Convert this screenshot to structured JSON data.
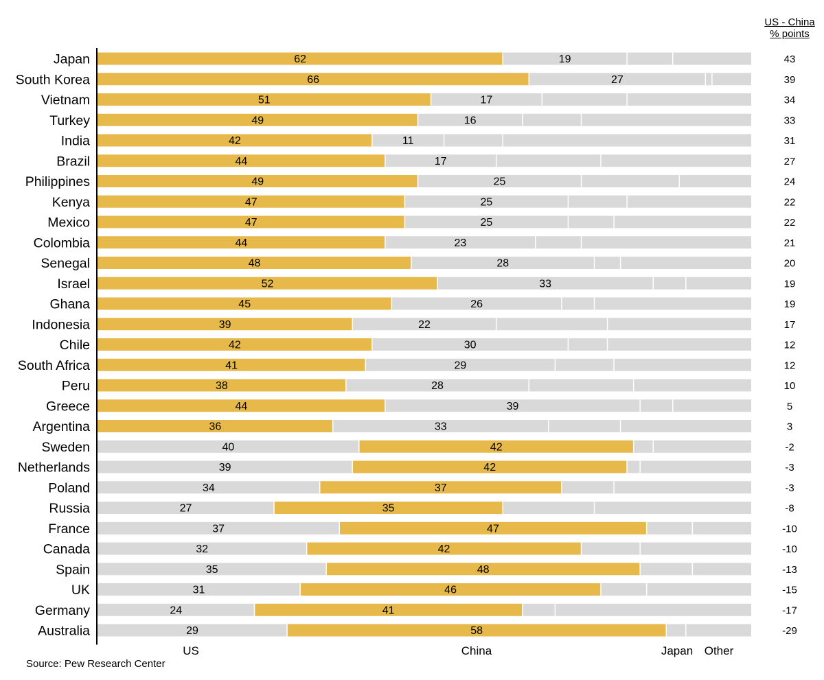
{
  "chart_data": {
    "type": "bar",
    "stacked": true,
    "orientation": "horizontal",
    "colors": {
      "highlight": "#E6B94A",
      "other": "#D9D9D9",
      "separator": "#FFFFFF",
      "axis": "#000000"
    },
    "segment_order": [
      "US",
      "China",
      "Japan",
      "Other"
    ],
    "bottom_labels": [
      "US",
      "China",
      "Japan",
      "Other"
    ],
    "diff_header": [
      "US - China",
      "% points"
    ],
    "rows": [
      {
        "country": "Japan",
        "us": 62,
        "china": 19,
        "japan": 7,
        "other": 12,
        "diff": "43"
      },
      {
        "country": "South Korea",
        "us": 66,
        "china": 27,
        "japan": 1,
        "other": 6,
        "diff": "39"
      },
      {
        "country": "Vietnam",
        "us": 51,
        "china": 17,
        "japan": 13,
        "other": 19,
        "diff": "34"
      },
      {
        "country": "Turkey",
        "us": 49,
        "china": 16,
        "japan": 9,
        "other": 26,
        "diff": "33"
      },
      {
        "country": "India",
        "us": 42,
        "china": 11,
        "japan": 9,
        "other": 38,
        "diff": "31"
      },
      {
        "country": "Brazil",
        "us": 44,
        "china": 17,
        "japan": 16,
        "other": 23,
        "diff": "27"
      },
      {
        "country": "Philippines",
        "us": 49,
        "china": 25,
        "japan": 15,
        "other": 11,
        "diff": "24"
      },
      {
        "country": "Kenya",
        "us": 47,
        "china": 25,
        "japan": 9,
        "other": 19,
        "diff": "22"
      },
      {
        "country": "Mexico",
        "us": 47,
        "china": 25,
        "japan": 7,
        "other": 21,
        "diff": "22"
      },
      {
        "country": "Colombia",
        "us": 44,
        "china": 23,
        "japan": 7,
        "other": 26,
        "diff": "21"
      },
      {
        "country": "Senegal",
        "us": 48,
        "china": 28,
        "japan": 4,
        "other": 20,
        "diff": "20"
      },
      {
        "country": "Israel",
        "us": 52,
        "china": 33,
        "japan": 5,
        "other": 10,
        "diff": "19"
      },
      {
        "country": "Ghana",
        "us": 45,
        "china": 26,
        "japan": 5,
        "other": 24,
        "diff": "19"
      },
      {
        "country": "Indonesia",
        "us": 39,
        "china": 22,
        "japan": 17,
        "other": 22,
        "diff": "17"
      },
      {
        "country": "Chile",
        "us": 42,
        "china": 30,
        "japan": 6,
        "other": 22,
        "diff": "12"
      },
      {
        "country": "South Africa",
        "us": 41,
        "china": 29,
        "japan": 9,
        "other": 21,
        "diff": "12"
      },
      {
        "country": "Peru",
        "us": 38,
        "china": 28,
        "japan": 16,
        "other": 18,
        "diff": "10"
      },
      {
        "country": "Greece",
        "us": 44,
        "china": 39,
        "japan": 5,
        "other": 12,
        "diff": "5"
      },
      {
        "country": "Argentina",
        "us": 36,
        "china": 33,
        "japan": 11,
        "other": 20,
        "diff": "3"
      },
      {
        "country": "Sweden",
        "us": 40,
        "china": 42,
        "japan": 3,
        "other": 15,
        "diff": "-2"
      },
      {
        "country": "Netherlands",
        "us": 39,
        "china": 42,
        "japan": 2,
        "other": 17,
        "diff": "-3"
      },
      {
        "country": "Poland",
        "us": 34,
        "china": 37,
        "japan": 8,
        "other": 21,
        "diff": "-3"
      },
      {
        "country": "Russia",
        "us": 27,
        "china": 35,
        "japan": 14,
        "other": 24,
        "diff": "-8"
      },
      {
        "country": "France",
        "us": 37,
        "china": 47,
        "japan": 7,
        "other": 9,
        "diff": "-10"
      },
      {
        "country": "Canada",
        "us": 32,
        "china": 42,
        "japan": 9,
        "other": 17,
        "diff": "-10"
      },
      {
        "country": "Spain",
        "us": 35,
        "china": 48,
        "japan": 8,
        "other": 9,
        "diff": "-13"
      },
      {
        "country": "UK",
        "us": 31,
        "china": 46,
        "japan": 7,
        "other": 16,
        "diff": "-15"
      },
      {
        "country": "Germany",
        "us": 24,
        "china": 41,
        "japan": 5,
        "other": 30,
        "diff": "-17"
      },
      {
        "country": "Australia",
        "us": 29,
        "china": 58,
        "japan": 3,
        "other": 10,
        "diff": "-29"
      }
    ]
  },
  "source": "Source: Pew Research Center"
}
